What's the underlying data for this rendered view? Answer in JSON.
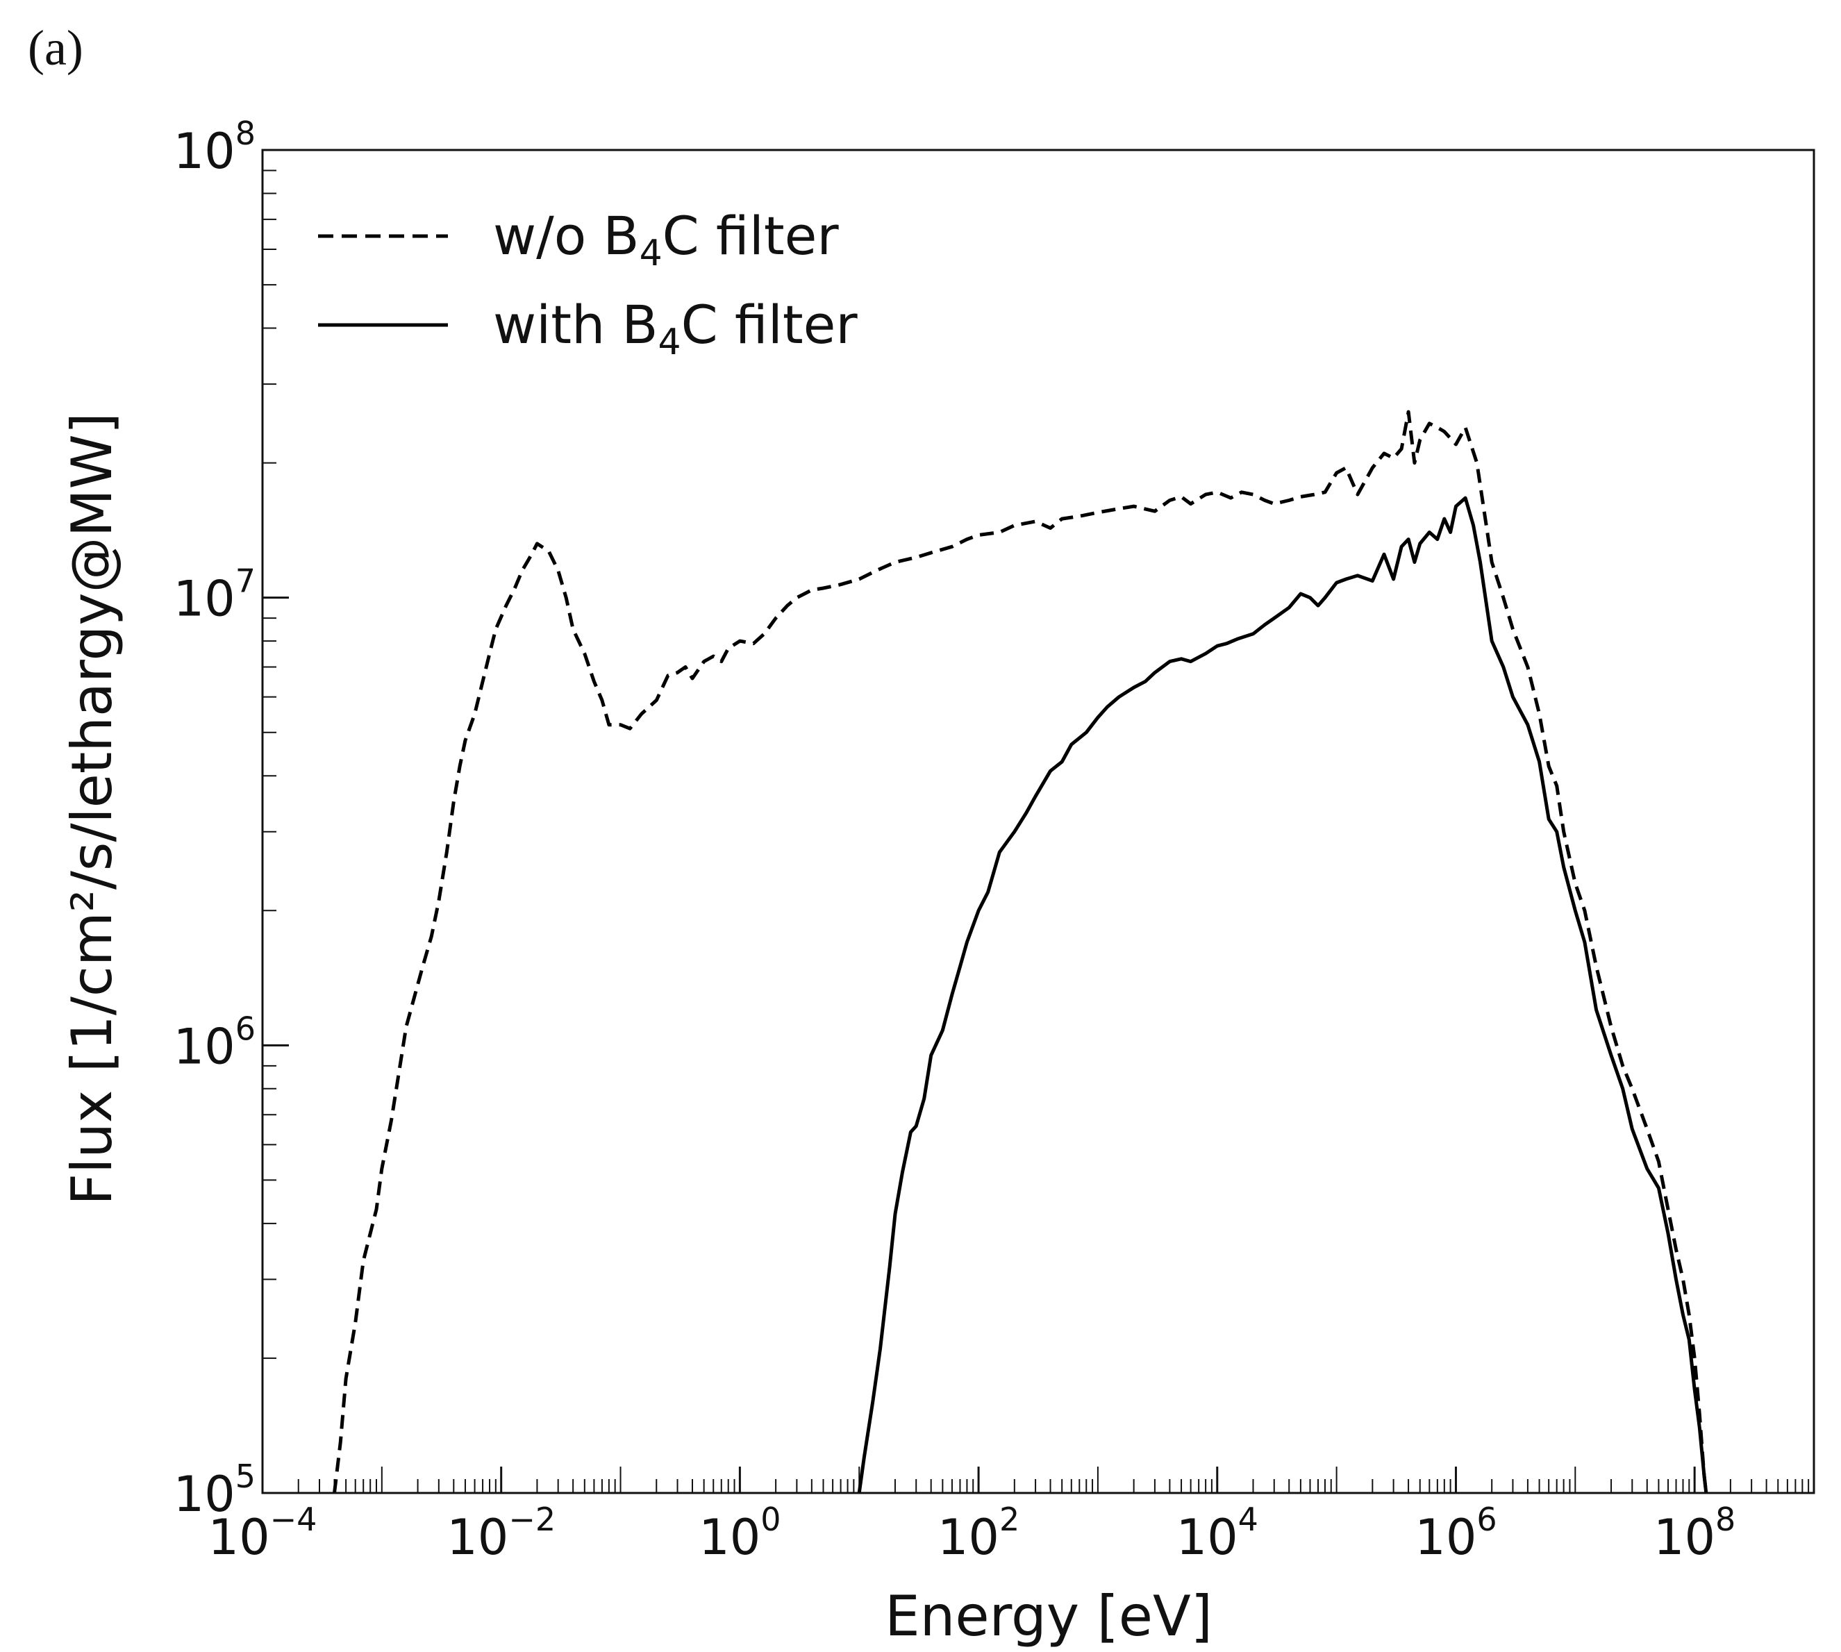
{
  "panel_label": "(a)",
  "chart_data": {
    "type": "line",
    "title": "",
    "xlabel": "Energy [eV]",
    "ylabel": "Flux [1/cm²/s/lethargy@MW]",
    "x_scale": "log",
    "y_scale": "log",
    "xlim": [
      0.0001,
      1000000000
    ],
    "ylim": [
      100000,
      100000000
    ],
    "x_ticks": [
      {
        "value": 0.0001,
        "base": "10",
        "exp": "−4"
      },
      {
        "value": 0.01,
        "base": "10",
        "exp": "−2"
      },
      {
        "value": 1,
        "base": "10",
        "exp": "0"
      },
      {
        "value": 100,
        "base": "10",
        "exp": "2"
      },
      {
        "value": 10000,
        "base": "10",
        "exp": "4"
      },
      {
        "value": 1000000,
        "base": "10",
        "exp": "6"
      },
      {
        "value": 100000000,
        "base": "10",
        "exp": "8"
      }
    ],
    "y_ticks": [
      {
        "value": 100000,
        "base": "10",
        "exp": "5"
      },
      {
        "value": 1000000,
        "base": "10",
        "exp": "6"
      },
      {
        "value": 10000000,
        "base": "10",
        "exp": "7"
      },
      {
        "value": 100000000,
        "base": "10",
        "exp": "8"
      }
    ],
    "grid": false,
    "legend_position": "top-left",
    "series": [
      {
        "name": "w/o B4C filter",
        "legend_parts": [
          "w/o B",
          "4",
          "C filter"
        ],
        "style": "dashed",
        "color": "#000000",
        "points": [
          [
            0.0004,
            100000
          ],
          [
            0.00045,
            130000
          ],
          [
            0.0005,
            180000
          ],
          [
            0.0006,
            240000
          ],
          [
            0.0007,
            330000
          ],
          [
            0.0008,
            380000
          ],
          [
            0.0009,
            430000
          ],
          [
            0.001,
            530000
          ],
          [
            0.0012,
            680000
          ],
          [
            0.0014,
            880000
          ],
          [
            0.0016,
            1100000
          ],
          [
            0.0019,
            1300000
          ],
          [
            0.0022,
            1500000
          ],
          [
            0.0026,
            1750000
          ],
          [
            0.003,
            2100000
          ],
          [
            0.0035,
            2700000
          ],
          [
            0.004,
            3500000
          ],
          [
            0.0045,
            4200000
          ],
          [
            0.005,
            4800000
          ],
          [
            0.006,
            5500000
          ],
          [
            0.007,
            6500000
          ],
          [
            0.008,
            7500000
          ],
          [
            0.009,
            8500000
          ],
          [
            0.011,
            9600000
          ],
          [
            0.013,
            10500000
          ],
          [
            0.015,
            11500000
          ],
          [
            0.018,
            12500000
          ],
          [
            0.02,
            13200000
          ],
          [
            0.025,
            12700000
          ],
          [
            0.03,
            11500000
          ],
          [
            0.035,
            10000000
          ],
          [
            0.04,
            8500000
          ],
          [
            0.05,
            7500000
          ],
          [
            0.06,
            6500000
          ],
          [
            0.07,
            5900000
          ],
          [
            0.08,
            5200000
          ],
          [
            0.1,
            5200000
          ],
          [
            0.12,
            5100000
          ],
          [
            0.15,
            5500000
          ],
          [
            0.2,
            5900000
          ],
          [
            0.25,
            6700000
          ],
          [
            0.3,
            6800000
          ],
          [
            0.35,
            7000000
          ],
          [
            0.4,
            6600000
          ],
          [
            0.5,
            7200000
          ],
          [
            0.6,
            7400000
          ],
          [
            0.7,
            7200000
          ],
          [
            0.8,
            7700000
          ],
          [
            1,
            8000000
          ],
          [
            1.3,
            7900000
          ],
          [
            1.6,
            8300000
          ],
          [
            2,
            9000000
          ],
          [
            2.5,
            9600000
          ],
          [
            3,
            10000000
          ],
          [
            4,
            10400000
          ],
          [
            5,
            10500000
          ],
          [
            7,
            10700000
          ],
          [
            10,
            11000000
          ],
          [
            14,
            11500000
          ],
          [
            20,
            12000000
          ],
          [
            30,
            12300000
          ],
          [
            40,
            12600000
          ],
          [
            60,
            13000000
          ],
          [
            80,
            13500000
          ],
          [
            100,
            13800000
          ],
          [
            150,
            14000000
          ],
          [
            200,
            14500000
          ],
          [
            300,
            14800000
          ],
          [
            400,
            14300000
          ],
          [
            500,
            15000000
          ],
          [
            700,
            15200000
          ],
          [
            1000,
            15500000
          ],
          [
            1500,
            15800000
          ],
          [
            2000,
            16000000
          ],
          [
            3000,
            15600000
          ],
          [
            4000,
            16500000
          ],
          [
            5000,
            16800000
          ],
          [
            6000,
            16200000
          ],
          [
            8000,
            17000000
          ],
          [
            10000,
            17200000
          ],
          [
            13000,
            16700000
          ],
          [
            16000,
            17200000
          ],
          [
            20000,
            17000000
          ],
          [
            25000,
            16500000
          ],
          [
            30000,
            16200000
          ],
          [
            40000,
            16500000
          ],
          [
            50000,
            16800000
          ],
          [
            65000,
            17000000
          ],
          [
            80000,
            17200000
          ],
          [
            100000,
            19000000
          ],
          [
            120000,
            19500000
          ],
          [
            150000,
            17000000
          ],
          [
            200000,
            19500000
          ],
          [
            250000,
            21000000
          ],
          [
            300000,
            20500000
          ],
          [
            350000,
            21500000
          ],
          [
            400000,
            26000000
          ],
          [
            450000,
            20000000
          ],
          [
            500000,
            22500000
          ],
          [
            600000,
            24500000
          ],
          [
            700000,
            24000000
          ],
          [
            800000,
            23500000
          ],
          [
            1000000,
            22000000
          ],
          [
            1200000,
            24000000
          ],
          [
            1500000,
            20000000
          ],
          [
            2000000,
            12000000
          ],
          [
            2500000,
            10000000
          ],
          [
            3000000,
            8500000
          ],
          [
            4000000,
            7000000
          ],
          [
            5000000,
            5500000
          ],
          [
            6000000,
            4200000
          ],
          [
            7000000,
            3800000
          ],
          [
            8000000,
            3000000
          ],
          [
            10000000,
            2300000
          ],
          [
            12000000,
            2000000
          ],
          [
            15000000,
            1500000
          ],
          [
            20000000,
            1100000
          ],
          [
            25000000,
            900000
          ],
          [
            30000000,
            800000
          ],
          [
            40000000,
            650000
          ],
          [
            50000000,
            550000
          ],
          [
            60000000,
            430000
          ],
          [
            70000000,
            350000
          ],
          [
            80000000,
            300000
          ],
          [
            90000000,
            250000
          ],
          [
            100000000,
            200000
          ],
          [
            110000000,
            150000
          ],
          [
            120000000,
            110000
          ],
          [
            125000000,
            100000
          ]
        ]
      },
      {
        "name": "with B4C filter",
        "legend_parts": [
          "with B",
          "4",
          "C filter"
        ],
        "style": "solid",
        "color": "#000000",
        "points": [
          [
            10,
            100000
          ],
          [
            11,
            120000
          ],
          [
            13,
            160000
          ],
          [
            15,
            210000
          ],
          [
            18,
            320000
          ],
          [
            20,
            420000
          ],
          [
            23,
            520000
          ],
          [
            27,
            640000
          ],
          [
            30,
            660000
          ],
          [
            35,
            760000
          ],
          [
            40,
            950000
          ],
          [
            50,
            1080000
          ],
          [
            60,
            1300000
          ],
          [
            70,
            1500000
          ],
          [
            80,
            1700000
          ],
          [
            100,
            2000000
          ],
          [
            120,
            2200000
          ],
          [
            150,
            2700000
          ],
          [
            200,
            3000000
          ],
          [
            250,
            3300000
          ],
          [
            300,
            3600000
          ],
          [
            400,
            4100000
          ],
          [
            500,
            4300000
          ],
          [
            600,
            4700000
          ],
          [
            800,
            5000000
          ],
          [
            1000,
            5400000
          ],
          [
            1200,
            5700000
          ],
          [
            1500,
            6000000
          ],
          [
            2000,
            6300000
          ],
          [
            2500,
            6500000
          ],
          [
            3000,
            6800000
          ],
          [
            4000,
            7200000
          ],
          [
            5000,
            7300000
          ],
          [
            6000,
            7200000
          ],
          [
            8000,
            7500000
          ],
          [
            10000,
            7800000
          ],
          [
            12000,
            7900000
          ],
          [
            15000,
            8100000
          ],
          [
            20000,
            8300000
          ],
          [
            25000,
            8700000
          ],
          [
            30000,
            9000000
          ],
          [
            40000,
            9500000
          ],
          [
            50000,
            10200000
          ],
          [
            60000,
            10000000
          ],
          [
            70000,
            9600000
          ],
          [
            80000,
            10000000
          ],
          [
            100000,
            10800000
          ],
          [
            120000,
            11000000
          ],
          [
            150000,
            11200000
          ],
          [
            200000,
            10900000
          ],
          [
            250000,
            12500000
          ],
          [
            300000,
            11000000
          ],
          [
            350000,
            13000000
          ],
          [
            400000,
            13500000
          ],
          [
            450000,
            12000000
          ],
          [
            500000,
            13200000
          ],
          [
            600000,
            14000000
          ],
          [
            700000,
            13500000
          ],
          [
            800000,
            15000000
          ],
          [
            900000,
            14000000
          ],
          [
            1000000,
            16000000
          ],
          [
            1200000,
            16700000
          ],
          [
            1400000,
            14500000
          ],
          [
            1600000,
            12000000
          ],
          [
            2000000,
            8000000
          ],
          [
            2500000,
            7000000
          ],
          [
            3000000,
            6000000
          ],
          [
            4000000,
            5200000
          ],
          [
            5000000,
            4300000
          ],
          [
            6000000,
            3200000
          ],
          [
            7000000,
            3000000
          ],
          [
            8000000,
            2500000
          ],
          [
            10000000,
            2000000
          ],
          [
            12000000,
            1700000
          ],
          [
            15000000,
            1200000
          ],
          [
            20000000,
            950000
          ],
          [
            25000000,
            800000
          ],
          [
            30000000,
            650000
          ],
          [
            40000000,
            530000
          ],
          [
            50000000,
            480000
          ],
          [
            60000000,
            380000
          ],
          [
            70000000,
            300000
          ],
          [
            80000000,
            250000
          ],
          [
            90000000,
            220000
          ],
          [
            100000000,
            170000
          ],
          [
            110000000,
            140000
          ],
          [
            120000000,
            110000
          ],
          [
            125000000,
            100000
          ]
        ]
      }
    ]
  }
}
